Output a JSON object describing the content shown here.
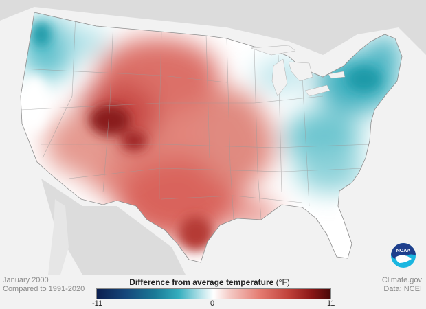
{
  "caption": {
    "period": "January 2000",
    "baseline": "Compared to 1991-2020"
  },
  "credits": {
    "site": "Climate.gov",
    "data_source": "Data: NCEI"
  },
  "legend": {
    "title": "Difference from average temperature",
    "unit": "(°F)",
    "min_label": "-11",
    "mid_label": "0",
    "max_label": "11"
  },
  "logo": {
    "text": "NOAA",
    "colors": {
      "top": "#1f3f8c",
      "bottom": "#1ab6e0"
    }
  },
  "colors": {
    "cold": "#1a9aa8",
    "neutral": "#ffffff",
    "warm": "#d9645c",
    "hot": "#6a0a0a",
    "land_outside": "#d9d9d9",
    "water": "#f2f2f2"
  }
}
